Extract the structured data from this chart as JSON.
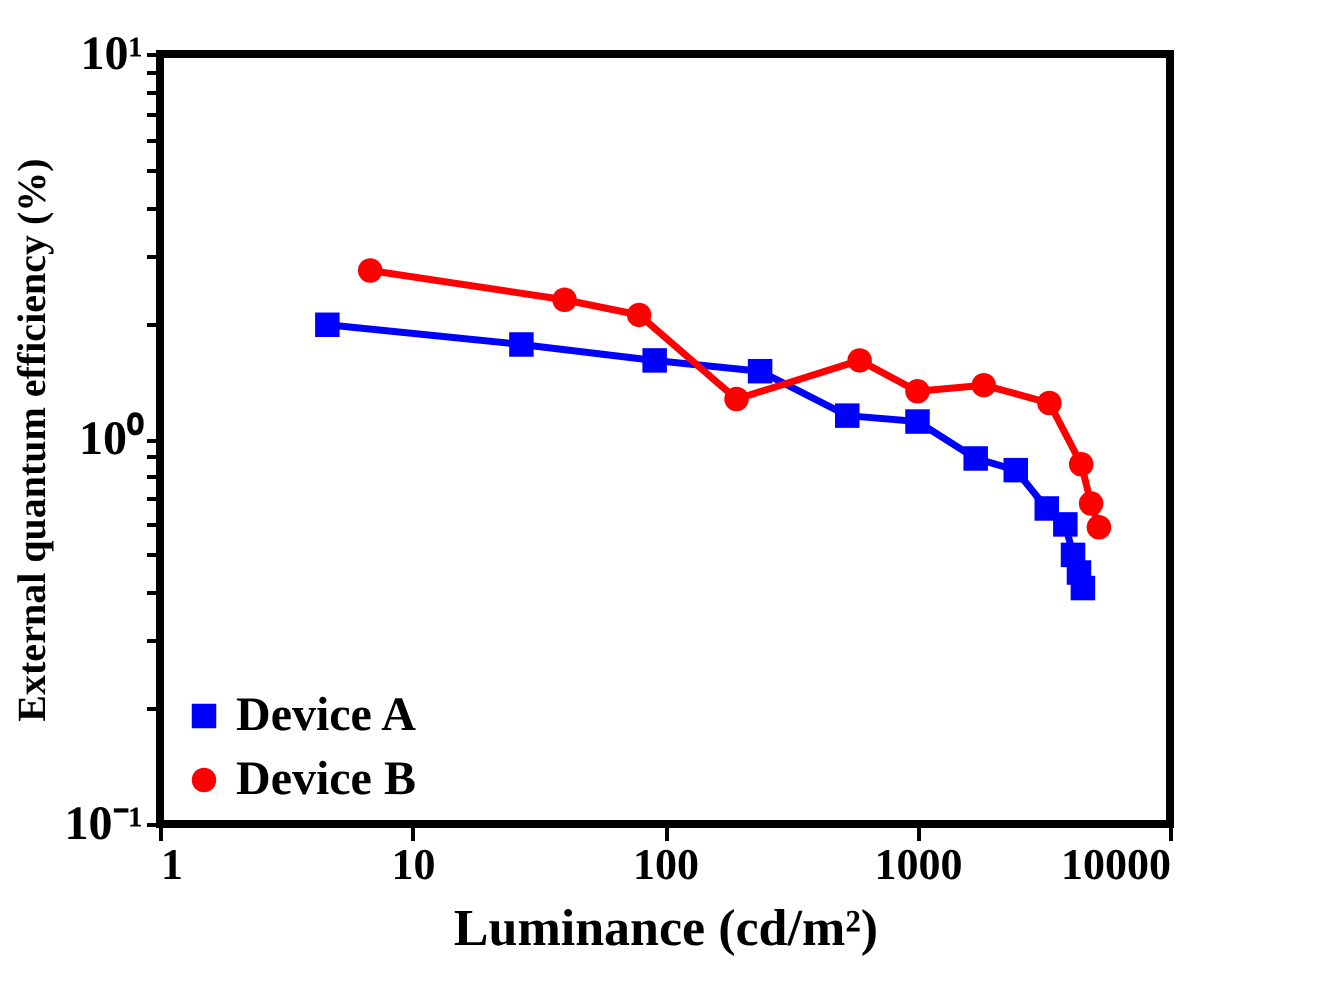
{
  "chart_data": {
    "type": "line",
    "xlabel": "Luminance (cd/m²)",
    "ylabel": "External quantum efficiency (%)",
    "log": "xy",
    "xlim": [
      1,
      10000
    ],
    "xticks": [
      1,
      10,
      100,
      1000,
      10000
    ],
    "ylim": [
      0.1,
      10
    ],
    "yticks": [
      {
        "value": 0.1,
        "label": "10⁻¹"
      },
      {
        "value": 0.2,
        "label": null
      },
      {
        "value": 0.3,
        "label": null
      },
      {
        "value": 0.4,
        "label": null
      },
      {
        "value": 0.5,
        "label": null
      },
      {
        "value": 0.6,
        "label": null
      },
      {
        "value": 0.7,
        "label": null
      },
      {
        "value": 0.8,
        "label": null
      },
      {
        "value": 0.9,
        "label": null
      },
      {
        "value": 1,
        "label": "10⁰"
      },
      {
        "value": 2,
        "label": null
      },
      {
        "value": 3,
        "label": null
      },
      {
        "value": 4,
        "label": null
      },
      {
        "value": 5,
        "label": null
      },
      {
        "value": 6,
        "label": null
      },
      {
        "value": 7,
        "label": null
      },
      {
        "value": 8,
        "label": null
      },
      {
        "value": 9,
        "label": null
      },
      {
        "value": 10,
        "label": "10¹"
      }
    ],
    "grid": false,
    "legend": "bottom left",
    "line_style": "solid",
    "series": [
      {
        "name": "Device A",
        "color": "#0000ff",
        "marker": "square",
        "x": [
          4.6,
          27,
          91,
          238,
          527,
          1000,
          1700,
          2450,
          3250,
          3850,
          4130,
          4360,
          4520
        ],
        "values": [
          1.98,
          1.76,
          1.6,
          1.5,
          1.15,
          1.11,
          0.89,
          0.83,
          0.66,
          0.6,
          0.5,
          0.45,
          0.41
        ]
      },
      {
        "name": "Device B",
        "color": "#ff0000",
        "marker": "circle",
        "x": [
          6.8,
          40,
          79,
          192,
          590,
          1000,
          1830,
          3330,
          4450,
          4870,
          5230
        ],
        "values": [
          2.74,
          2.3,
          2.1,
          1.27,
          1.6,
          1.33,
          1.38,
          1.24,
          0.86,
          0.68,
          0.59
        ]
      }
    ]
  }
}
